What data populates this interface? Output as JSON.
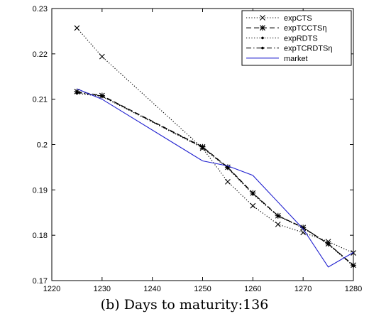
{
  "caption": "(b) Days to maturity:136",
  "chart_data": {
    "type": "line",
    "title": "",
    "xlabel": "",
    "ylabel": "",
    "xlim": [
      1220,
      1280
    ],
    "ylim": [
      0.17,
      0.23
    ],
    "xticks": [
      1220,
      1230,
      1240,
      1250,
      1260,
      1270,
      1280
    ],
    "xtick_labels": [
      "1220",
      "1230",
      "1240",
      "1250",
      "1260",
      "1270",
      "1280"
    ],
    "yticks": [
      0.17,
      0.18,
      0.19,
      0.2,
      0.21,
      0.22,
      0.23
    ],
    "ytick_labels": [
      "0.17",
      "0.18",
      "0.19",
      "0.2",
      "0.21",
      "0.22",
      "0.23"
    ],
    "grid": false,
    "legend_position": "top-right",
    "series": [
      {
        "name": "expCTS",
        "line": "dotted",
        "marker": "x",
        "color": "#000000",
        "x": [
          1225,
          1230,
          1250,
          1255,
          1260,
          1265,
          1270,
          1275,
          1280
        ],
        "y": [
          0.2257,
          0.2194,
          0.1992,
          0.1918,
          0.1865,
          0.1824,
          0.1806,
          0.1786,
          0.1761
        ]
      },
      {
        "name": "expTCCTSη",
        "line": "dashed",
        "marker": "star",
        "color": "#000000",
        "x": [
          1225,
          1230,
          1250,
          1255,
          1260,
          1265,
          1270,
          1275,
          1280
        ],
        "y": [
          0.2117,
          0.2108,
          0.1995,
          0.195,
          0.1893,
          0.1843,
          0.1817,
          0.1781,
          0.1734
        ]
      },
      {
        "name": "expRDTS",
        "line": "dotted",
        "marker": "dot",
        "color": "#000000",
        "x": [
          1225,
          1230,
          1250,
          1255,
          1260,
          1265,
          1270,
          1275,
          1280
        ],
        "y": [
          0.2113,
          0.2106,
          0.1993,
          0.1948,
          0.1891,
          0.1842,
          0.1816,
          0.178,
          0.1732
        ]
      },
      {
        "name": "expTCRDTSη",
        "line": "dash-dot",
        "marker": "dot",
        "color": "#000000",
        "x": [
          1225,
          1230,
          1250,
          1255,
          1260,
          1265,
          1270,
          1275,
          1280
        ],
        "y": [
          0.2115,
          0.2107,
          0.1994,
          0.1949,
          0.1892,
          0.1843,
          0.1817,
          0.1781,
          0.1733
        ]
      },
      {
        "name": "market",
        "line": "solid",
        "marker": "none",
        "color": "#1f1fcf",
        "x": [
          1225,
          1230,
          1250,
          1255,
          1260,
          1270,
          1275,
          1280
        ],
        "y": [
          0.2123,
          0.21,
          0.1964,
          0.1953,
          0.1932,
          0.1814,
          0.173,
          0.1762
        ]
      }
    ]
  }
}
